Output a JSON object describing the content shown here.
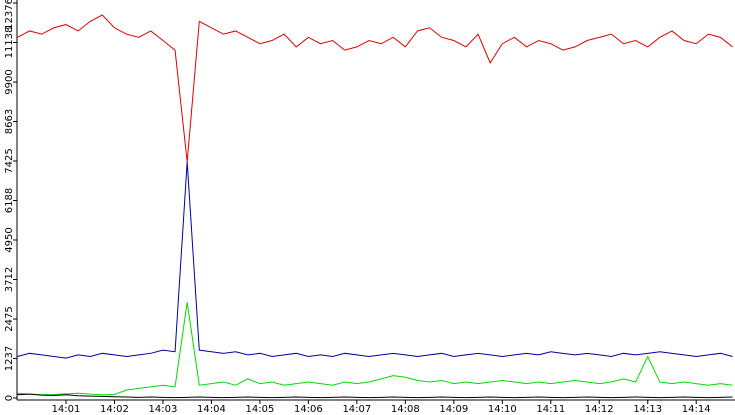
{
  "chart_data": {
    "type": "line",
    "x": [
      840,
      840.25,
      840.5,
      840.75,
      841,
      841.25,
      841.5,
      841.75,
      842,
      842.25,
      842.5,
      842.75,
      843,
      843.25,
      843.5,
      843.75,
      844,
      844.25,
      844.5,
      844.75,
      845,
      845.25,
      845.5,
      845.75,
      846,
      846.25,
      846.5,
      846.75,
      847,
      847.25,
      847.5,
      847.75,
      848,
      848.25,
      848.5,
      848.75,
      849,
      849.25,
      849.5,
      849.75,
      850,
      850.25,
      850.5,
      850.75,
      851,
      851.25,
      851.5,
      851.75,
      852,
      852.25,
      852.5,
      852.75,
      853,
      853.25,
      853.5,
      853.75,
      854,
      854.25,
      854.5,
      854.75
    ],
    "series": [
      {
        "name": "red",
        "color": "#e00000",
        "values": [
          11300,
          11500,
          11400,
          11600,
          11700,
          11500,
          11800,
          12000,
          11600,
          11400,
          11300,
          11500,
          11200,
          10900,
          7400,
          11800,
          11600,
          11400,
          11500,
          11300,
          11100,
          11200,
          11400,
          11000,
          11300,
          11100,
          11200,
          10900,
          11000,
          11200,
          11100,
          11300,
          11000,
          11500,
          11600,
          11300,
          11200,
          11000,
          11400,
          10500,
          11100,
          11300,
          11000,
          11200,
          11100,
          10900,
          11000,
          11200,
          11300,
          11400,
          11100,
          11200,
          11000,
          11300,
          11500,
          11200,
          11100,
          11400,
          11300,
          11000
        ]
      },
      {
        "name": "blue",
        "color": "#0000a0",
        "values": [
          1300,
          1400,
          1350,
          1300,
          1250,
          1350,
          1300,
          1400,
          1350,
          1300,
          1350,
          1400,
          1500,
          1450,
          7400,
          1500,
          1450,
          1400,
          1450,
          1350,
          1400,
          1300,
          1350,
          1400,
          1300,
          1350,
          1300,
          1400,
          1350,
          1300,
          1350,
          1400,
          1350,
          1300,
          1350,
          1400,
          1300,
          1350,
          1400,
          1350,
          1300,
          1350,
          1400,
          1350,
          1450,
          1400,
          1350,
          1400,
          1350,
          1300,
          1400,
          1350,
          1400,
          1450,
          1400,
          1350,
          1300,
          1350,
          1400,
          1300
        ]
      },
      {
        "name": "green",
        "color": "#00dd00",
        "values": [
          150,
          120,
          100,
          110,
          130,
          150,
          120,
          100,
          110,
          250,
          300,
          350,
          400,
          350,
          3000,
          400,
          450,
          500,
          400,
          600,
          450,
          500,
          400,
          450,
          500,
          450,
          400,
          500,
          450,
          500,
          600,
          700,
          650,
          550,
          500,
          550,
          450,
          500,
          450,
          500,
          550,
          500,
          450,
          500,
          450,
          500,
          550,
          500,
          450,
          500,
          600,
          500,
          1300,
          500,
          450,
          500,
          450,
          400,
          450,
          400
        ]
      },
      {
        "name": "black",
        "color": "#000000",
        "values": [
          100,
          120,
          90,
          80,
          100,
          70,
          60,
          50,
          40,
          30,
          20,
          30,
          20,
          10,
          20,
          30,
          20,
          10,
          20,
          30,
          20,
          10,
          20,
          30,
          20,
          10,
          20,
          30,
          20,
          10,
          20,
          30,
          20,
          10,
          20,
          30,
          20,
          10,
          20,
          30,
          20,
          10,
          20,
          30,
          20,
          10,
          20,
          30,
          20,
          10,
          20,
          30,
          20,
          10,
          20,
          30,
          20,
          10,
          20,
          30
        ]
      }
    ],
    "xlim": [
      840,
      854.8
    ],
    "xticks": [
      {
        "value": 841,
        "label": "14:01"
      },
      {
        "value": 842,
        "label": "14:02"
      },
      {
        "value": 843,
        "label": "14:03"
      },
      {
        "value": 844,
        "label": "14:04"
      },
      {
        "value": 845,
        "label": "14:05"
      },
      {
        "value": 846,
        "label": "14:06"
      },
      {
        "value": 847,
        "label": "14:07"
      },
      {
        "value": 848,
        "label": "14:08"
      },
      {
        "value": 849,
        "label": "14:09"
      },
      {
        "value": 850,
        "label": "14:10"
      },
      {
        "value": 851,
        "label": "14:11"
      },
      {
        "value": 852,
        "label": "14:12"
      },
      {
        "value": 853,
        "label": "14:13"
      },
      {
        "value": 854,
        "label": "14:14"
      }
    ],
    "ylim": [
      0,
      12376
    ],
    "yticks": [
      0,
      1237,
      2475,
      3712,
      4950,
      6188,
      7425,
      8663,
      9900,
      11138,
      12376
    ]
  }
}
